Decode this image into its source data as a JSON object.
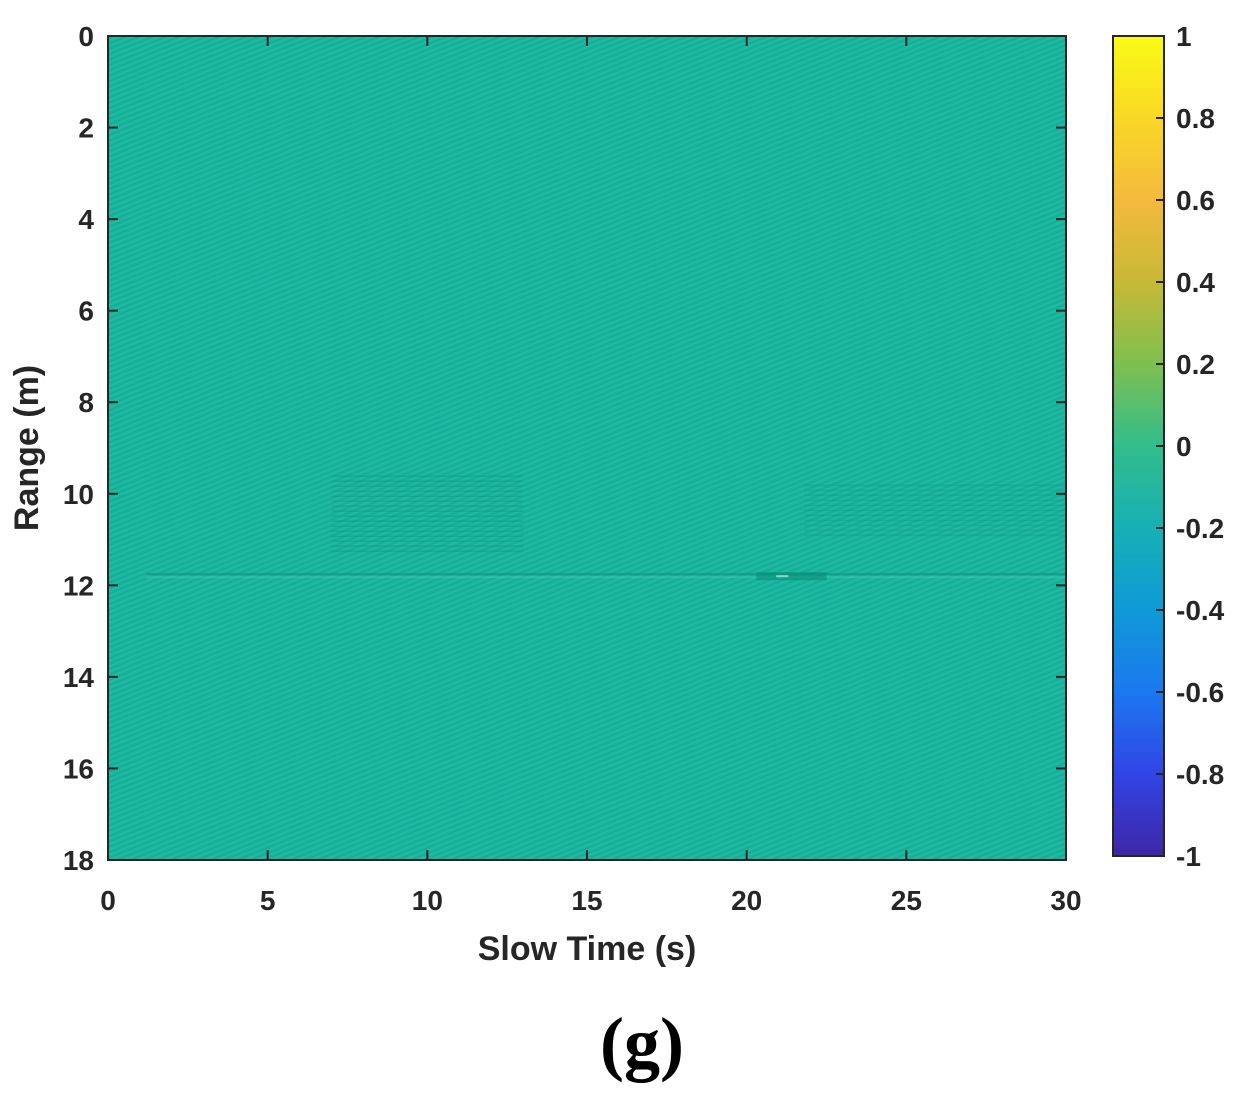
{
  "chart_data": {
    "type": "heatmap",
    "title": "",
    "xlabel": "Slow Time (s)",
    "ylabel": "Range (m)",
    "xlim": [
      0,
      30
    ],
    "ylim": [
      0,
      18
    ],
    "y_reversed": true,
    "xticks": [
      0,
      5,
      10,
      15,
      20,
      25,
      30
    ],
    "yticks": [
      0,
      2,
      4,
      6,
      8,
      10,
      12,
      14,
      16,
      18
    ],
    "colorbar": {
      "colormap": "parula",
      "clim": [
        -1,
        1
      ],
      "ticks": [
        1,
        0.8,
        0.6,
        0.4,
        0.2,
        0,
        -0.2,
        -0.4,
        -0.6,
        -0.8,
        -1
      ],
      "stops": [
        "#3e26a8",
        "#3145e6",
        "#1c78f0",
        "#0f9ad7",
        "#17b0b4",
        "#32bd8c",
        "#7ebf4f",
        "#c7b936",
        "#f4ba3d",
        "#f9d826",
        "#f9fb15"
      ]
    },
    "background_value": 0,
    "background_color": "#19b59e",
    "features": [
      {
        "kind": "horizontal-stripe",
        "range_m": 11.8,
        "x_start": 1.2,
        "x_end": 30,
        "strength": 0.25
      },
      {
        "kind": "activity-band",
        "range_m": [
          9.6,
          11.3
        ],
        "x_start": 7.0,
        "x_end": 13.0,
        "strength": 0.2
      },
      {
        "kind": "activity-band",
        "range_m": [
          9.8,
          11.0
        ],
        "x_start": 21.8,
        "x_end": 30,
        "strength": 0.15
      },
      {
        "kind": "bright-spot",
        "range_m": 11.8,
        "x_start": 20.3,
        "x_end": 22.5,
        "strength": 0.4
      }
    ]
  },
  "panel_label": "(g)"
}
